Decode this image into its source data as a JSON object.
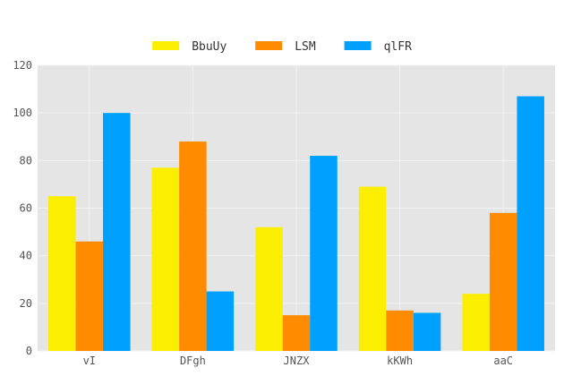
{
  "chart_data": {
    "type": "bar",
    "categories": [
      "vI",
      "DFgh",
      "JNZX",
      "kKWh",
      "aaC"
    ],
    "series": [
      {
        "name": "BbuUy",
        "color": "#fcee00",
        "values": [
          65,
          77,
          52,
          69,
          24
        ]
      },
      {
        "name": "LSM",
        "color": "#ff8c00",
        "values": [
          46,
          88,
          15,
          17,
          58
        ]
      },
      {
        "name": "qlFR",
        "color": "#00a0ff",
        "values": [
          100,
          25,
          82,
          16,
          107
        ]
      }
    ],
    "ylim": [
      0,
      120
    ],
    "yticks": [
      0,
      20,
      40,
      60,
      80,
      100,
      120
    ],
    "grid": true,
    "legend_position": "top-center",
    "plot_background": "#e5e5e5",
    "grid_color": "#f2f2f2"
  }
}
